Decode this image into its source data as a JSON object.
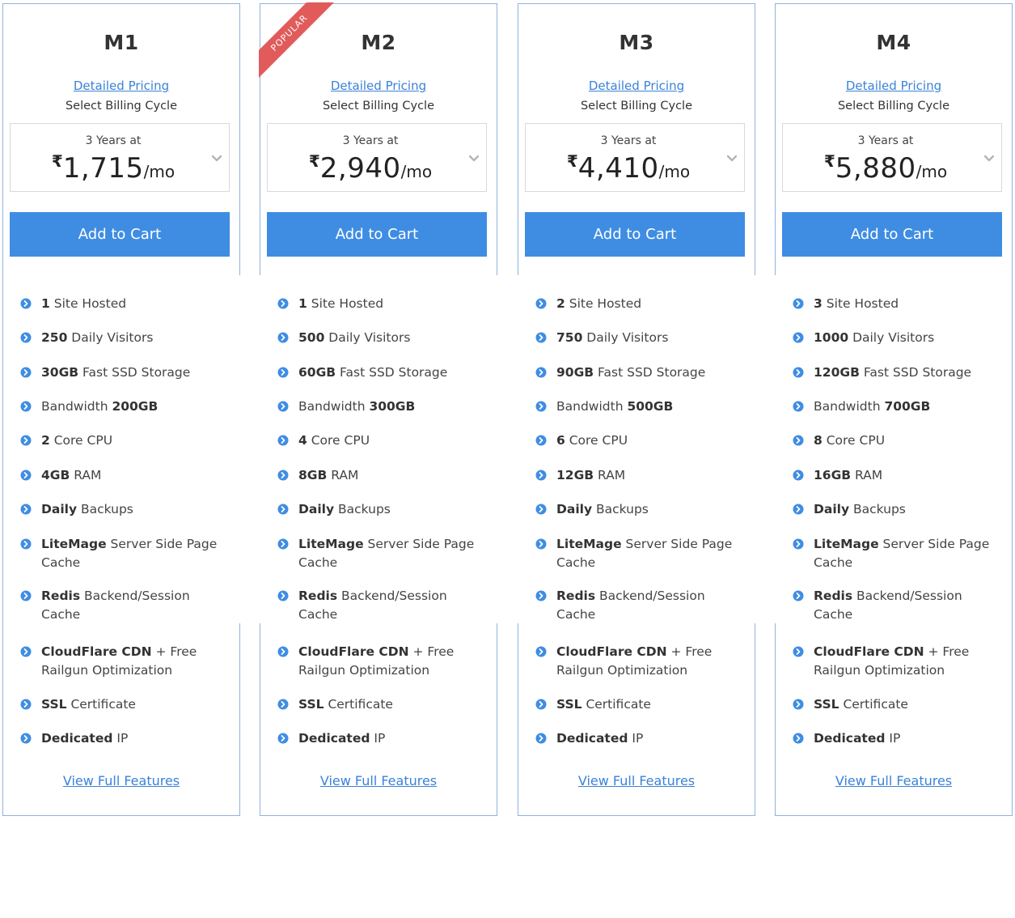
{
  "plans": [
    {
      "name": "M1",
      "pricing_link": "Detailed Pricing",
      "billing_label": "Select Billing Cycle",
      "term": "3 Years at",
      "currency": "₹",
      "amount": "1,715",
      "per": "/mo",
      "cart_label": "Add to Cart",
      "features": [
        {
          "bold": "1",
          "text": " Site Hosted"
        },
        {
          "bold": "250",
          "text": " Daily Visitors"
        },
        {
          "bold": "30GB",
          "text": " Fast SSD Storage"
        },
        {
          "pre": "Bandwidth ",
          "bold": "200GB",
          "text": ""
        },
        {
          "bold": "2",
          "text": " Core CPU"
        },
        {
          "bold": "4GB",
          "text": " RAM"
        },
        {
          "bold": "Daily",
          "text": " Backups"
        },
        {
          "bold": "LiteMage",
          "text": " Server Side Page Cache"
        },
        {
          "bold": "Redis",
          "text": " Backend/Session Cache"
        },
        {
          "bold": "CloudFlare CDN",
          "text": " + Free Railgun Optimization"
        },
        {
          "bold": "SSL",
          "text": " Certificate"
        },
        {
          "bold": "Dedicated",
          "text": " IP"
        }
      ],
      "full_features": "View Full Features"
    },
    {
      "name": "M2",
      "ribbon": "POPULAR",
      "pricing_link": "Detailed Pricing",
      "billing_label": "Select Billing Cycle",
      "term": "3 Years at",
      "currency": "₹",
      "amount": "2,940",
      "per": "/mo",
      "cart_label": "Add to Cart",
      "features": [
        {
          "bold": "1",
          "text": " Site Hosted"
        },
        {
          "bold": "500",
          "text": " Daily Visitors"
        },
        {
          "bold": "60GB",
          "text": " Fast SSD Storage"
        },
        {
          "pre": "Bandwidth ",
          "bold": "300GB",
          "text": ""
        },
        {
          "bold": "4",
          "text": " Core CPU"
        },
        {
          "bold": "8GB",
          "text": " RAM"
        },
        {
          "bold": "Daily",
          "text": " Backups"
        },
        {
          "bold": "LiteMage",
          "text": " Server Side Page Cache"
        },
        {
          "bold": "Redis",
          "text": " Backend/Session Cache"
        },
        {
          "bold": "CloudFlare CDN",
          "text": " + Free Railgun Optimization"
        },
        {
          "bold": "SSL",
          "text": " Certificate"
        },
        {
          "bold": "Dedicated",
          "text": " IP"
        }
      ],
      "full_features": "View Full Features"
    },
    {
      "name": "M3",
      "pricing_link": "Detailed Pricing",
      "billing_label": "Select Billing Cycle",
      "term": "3 Years at",
      "currency": "₹",
      "amount": "4,410",
      "per": "/mo",
      "cart_label": "Add to Cart",
      "features": [
        {
          "bold": "2",
          "text": " Site Hosted"
        },
        {
          "bold": "750",
          "text": " Daily Visitors"
        },
        {
          "bold": "90GB",
          "text": " Fast SSD Storage"
        },
        {
          "pre": "Bandwidth ",
          "bold": "500GB",
          "text": ""
        },
        {
          "bold": "6",
          "text": " Core CPU"
        },
        {
          "bold": "12GB",
          "text": " RAM"
        },
        {
          "bold": "Daily",
          "text": " Backups"
        },
        {
          "bold": "LiteMage",
          "text": " Server Side Page Cache"
        },
        {
          "bold": "Redis",
          "text": " Backend/Session Cache"
        },
        {
          "bold": "CloudFlare CDN",
          "text": " + Free Railgun Optimization"
        },
        {
          "bold": "SSL",
          "text": " Certificate"
        },
        {
          "bold": "Dedicated",
          "text": " IP"
        }
      ],
      "full_features": "View Full Features"
    },
    {
      "name": "M4",
      "pricing_link": "Detailed Pricing",
      "billing_label": "Select Billing Cycle",
      "term": "3 Years at",
      "currency": "₹",
      "amount": "5,880",
      "per": "/mo",
      "cart_label": "Add to Cart",
      "features": [
        {
          "bold": "3",
          "text": " Site Hosted"
        },
        {
          "bold": "1000",
          "text": " Daily Visitors"
        },
        {
          "bold": "120GB",
          "text": " Fast SSD Storage"
        },
        {
          "pre": "Bandwidth ",
          "bold": "700GB",
          "text": ""
        },
        {
          "bold": "8",
          "text": " Core CPU"
        },
        {
          "bold": "16GB",
          "text": " RAM"
        },
        {
          "bold": "Daily",
          "text": " Backups"
        },
        {
          "bold": "LiteMage",
          "text": " Server Side Page Cache"
        },
        {
          "bold": "Redis",
          "text": " Backend/Session Cache"
        },
        {
          "bold": "CloudFlare CDN",
          "text": " + Free Railgun Optimization"
        },
        {
          "bold": "SSL",
          "text": " Certificate"
        },
        {
          "bold": "Dedicated",
          "text": " IP"
        }
      ],
      "full_features": "View Full Features"
    }
  ],
  "colors": {
    "accent": "#3f8de3",
    "link": "#3b82d8",
    "card_border": "#8fb3df",
    "ribbon": "#e15b5b"
  },
  "icons": {
    "feature_bullet": "arrow-circle-right-icon",
    "select_chevron": "chevron-down-icon"
  }
}
